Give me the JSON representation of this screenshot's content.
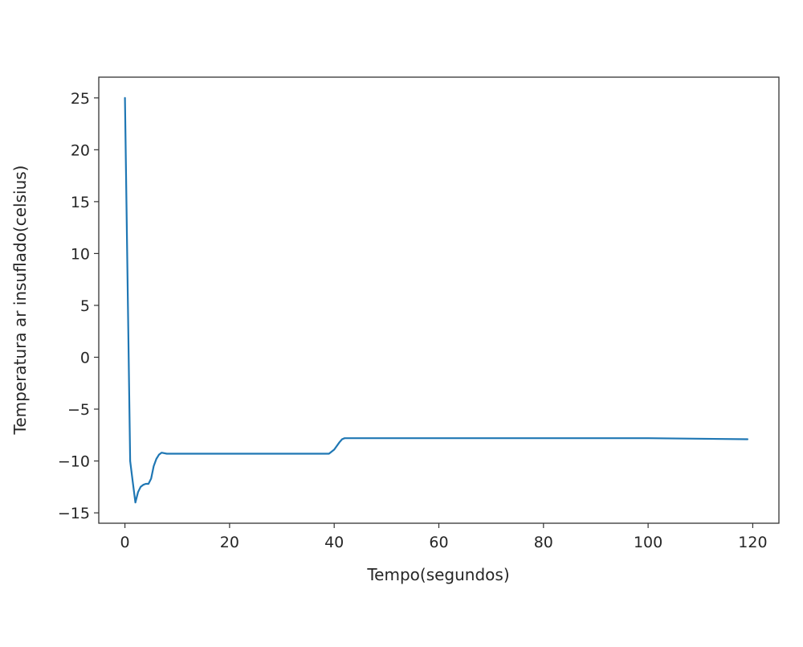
{
  "chart_data": {
    "type": "line",
    "title": "",
    "xlabel": "Tempo(segundos)",
    "ylabel": "Temperatura ar insuflado(celsius)",
    "xlim": [
      -5,
      125
    ],
    "ylim": [
      -16,
      27
    ],
    "xticks": [
      0,
      20,
      40,
      60,
      80,
      100,
      120
    ],
    "xtick_labels": [
      "0",
      "20",
      "40",
      "60",
      "80",
      "100",
      "120"
    ],
    "yticks": [
      25,
      20,
      15,
      10,
      5,
      0,
      -5,
      -10,
      -15
    ],
    "ytick_labels": [
      "25",
      "20",
      "15",
      "10",
      "5",
      "0",
      "−5",
      "−10",
      "−15"
    ],
    "grid": false,
    "legend": "none",
    "series": [
      {
        "color": "#1f77b4",
        "x": [
          0,
          1,
          1.5,
          2,
          2.5,
          3,
          3.5,
          4,
          4.5,
          5,
          5.5,
          6,
          6.5,
          7,
          8,
          10,
          20,
          30,
          39,
          40,
          41,
          41.5,
          42,
          43,
          50,
          60,
          80,
          100,
          119
        ],
        "y": [
          25,
          -10,
          -12,
          -14,
          -13,
          -12.5,
          -12.3,
          -12.2,
          -12.2,
          -11.7,
          -10.5,
          -9.8,
          -9.4,
          -9.2,
          -9.3,
          -9.3,
          -9.3,
          -9.3,
          -9.3,
          -8.9,
          -8.2,
          -7.9,
          -7.8,
          -7.8,
          -7.8,
          -7.8,
          -7.8,
          -7.8,
          -7.9
        ]
      }
    ]
  }
}
